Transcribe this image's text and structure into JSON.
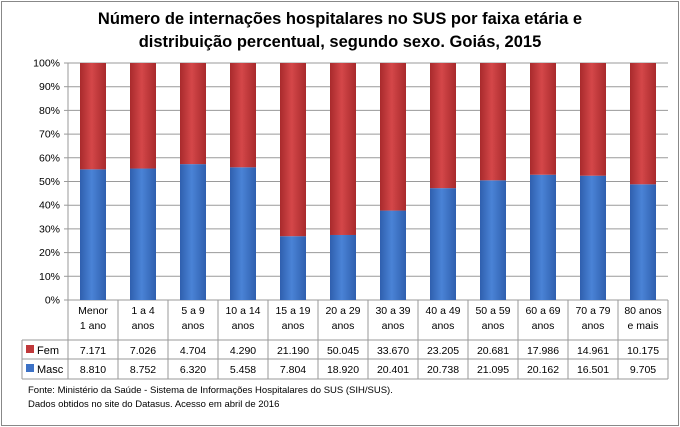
{
  "chart_data": {
    "type": "bar",
    "stacked": "percent",
    "title_lines": [
      "Número de internações hospitalares no SUS por faixa etária e",
      "distribuição percentual, segundo sexo. Goiás, 2015"
    ],
    "categories": [
      [
        "Menor",
        "1 ano"
      ],
      [
        "1 a 4",
        "anos"
      ],
      [
        "5 a 9",
        "anos"
      ],
      [
        "10 a 14",
        "anos"
      ],
      [
        "15 a 19",
        "anos"
      ],
      [
        "20 a 29",
        "anos"
      ],
      [
        "30 a 39",
        "anos"
      ],
      [
        "40 a 49",
        "anos"
      ],
      [
        "50 a 59",
        "anos"
      ],
      [
        "60 a 69",
        "anos"
      ],
      [
        "70 a 79",
        "anos"
      ],
      [
        "80 anos",
        "e mais"
      ]
    ],
    "series": [
      {
        "name": "Fem",
        "color": "#c0393b",
        "values": [
          7171,
          7026,
          4704,
          4290,
          21190,
          50045,
          33670,
          23205,
          20681,
          17986,
          14961,
          10175
        ],
        "labels": [
          "7.171",
          "7.026",
          "4.704",
          "4.290",
          "21.190",
          "50.045",
          "33.670",
          "23.205",
          "20.681",
          "17.986",
          "14.961",
          "10.175"
        ]
      },
      {
        "name": "Masc",
        "color": "#3d72c6",
        "values": [
          8810,
          8752,
          6320,
          5458,
          7804,
          18920,
          20401,
          20738,
          21095,
          20162,
          16501,
          9705
        ],
        "labels": [
          "8.810",
          "8.752",
          "6.320",
          "5.458",
          "7.804",
          "18.920",
          "20.401",
          "20.738",
          "21.095",
          "20.162",
          "16.501",
          "9.705"
        ]
      }
    ],
    "ylim": [
      0,
      100
    ],
    "yticks": [
      "0%",
      "10%",
      "20%",
      "30%",
      "40%",
      "50%",
      "60%",
      "70%",
      "80%",
      "90%",
      "100%"
    ],
    "grid": true,
    "legend": "data-table"
  },
  "source": [
    "Fonte: Ministério da Saúde - Sistema de Informações Hospitalares do SUS (SIH/SUS).",
    "Dados obtidos no site do Datasus. Acesso em abril de 2016"
  ]
}
